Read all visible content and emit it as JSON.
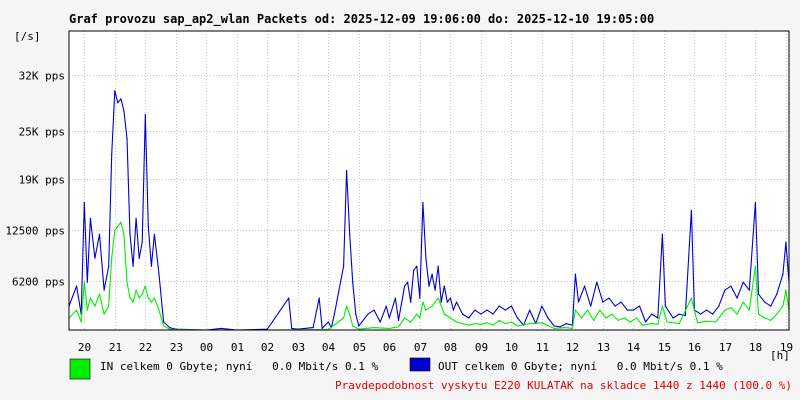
{
  "chart_data": {
    "type": "line",
    "title": "Graf provozu sap_ap2_wlan Packets od: 2025-12-09 19:06:00 do: 2025-12-10 19:05:00",
    "ylabel": "[/s]",
    "xlabel": "[h]",
    "ylim": [
      0,
      37500
    ],
    "xlim": [
      19.5,
      43.1
    ],
    "grid": true,
    "y_ticks": [
      {
        "value": 6200,
        "label": "6200 pps"
      },
      {
        "value": 12500,
        "label": "12500 pps"
      },
      {
        "value": 19000,
        "label": "19K pps"
      },
      {
        "value": 25000,
        "label": "25K pps"
      },
      {
        "value": 32000,
        "label": "32K pps"
      }
    ],
    "x_ticks": [
      {
        "value": 20,
        "label": "20"
      },
      {
        "value": 21,
        "label": "21"
      },
      {
        "value": 22,
        "label": "22"
      },
      {
        "value": 23,
        "label": "23"
      },
      {
        "value": 24,
        "label": "00"
      },
      {
        "value": 25,
        "label": "01"
      },
      {
        "value": 26,
        "label": "02"
      },
      {
        "value": 27,
        "label": "03"
      },
      {
        "value": 28,
        "label": "04"
      },
      {
        "value": 29,
        "label": "05"
      },
      {
        "value": 30,
        "label": "06"
      },
      {
        "value": 31,
        "label": "07"
      },
      {
        "value": 32,
        "label": "08"
      },
      {
        "value": 33,
        "label": "09"
      },
      {
        "value": 34,
        "label": "10"
      },
      {
        "value": 35,
        "label": "11"
      },
      {
        "value": 36,
        "label": "12"
      },
      {
        "value": 37,
        "label": "13"
      },
      {
        "value": 38,
        "label": "14"
      },
      {
        "value": 39,
        "label": "15"
      },
      {
        "value": 40,
        "label": "16"
      },
      {
        "value": 41,
        "label": "17"
      },
      {
        "value": 42,
        "label": "18"
      },
      {
        "value": 43,
        "label": "19"
      }
    ],
    "series": [
      {
        "name": "OUT",
        "color": "#0000cc",
        "points": [
          [
            19.5,
            3000
          ],
          [
            19.75,
            5500
          ],
          [
            19.9,
            2000
          ],
          [
            20.0,
            16000
          ],
          [
            20.1,
            6000
          ],
          [
            20.2,
            14000
          ],
          [
            20.35,
            9000
          ],
          [
            20.5,
            12000
          ],
          [
            20.65,
            5000
          ],
          [
            20.8,
            8000
          ],
          [
            20.9,
            22000
          ],
          [
            21.0,
            30000
          ],
          [
            21.1,
            28500
          ],
          [
            21.2,
            29000
          ],
          [
            21.3,
            27500
          ],
          [
            21.4,
            24000
          ],
          [
            21.5,
            12000
          ],
          [
            21.6,
            8000
          ],
          [
            21.7,
            14000
          ],
          [
            21.8,
            9000
          ],
          [
            21.9,
            11000
          ],
          [
            22.0,
            27000
          ],
          [
            22.1,
            13000
          ],
          [
            22.2,
            8000
          ],
          [
            22.3,
            12000
          ],
          [
            22.45,
            7000
          ],
          [
            22.6,
            1000
          ],
          [
            22.8,
            300
          ],
          [
            23.0,
            100
          ],
          [
            24.0,
            0
          ],
          [
            24.5,
            200
          ],
          [
            25.0,
            0
          ],
          [
            26.0,
            100
          ],
          [
            26.7,
            4000
          ],
          [
            26.8,
            200
          ],
          [
            27.0,
            100
          ],
          [
            27.5,
            300
          ],
          [
            27.7,
            4000
          ],
          [
            27.8,
            200
          ],
          [
            28.0,
            1000
          ],
          [
            28.1,
            300
          ],
          [
            28.2,
            2000
          ],
          [
            28.5,
            8000
          ],
          [
            28.6,
            20000
          ],
          [
            28.7,
            12000
          ],
          [
            28.8,
            6000
          ],
          [
            28.9,
            2000
          ],
          [
            29.0,
            500
          ],
          [
            29.3,
            2000
          ],
          [
            29.5,
            2500
          ],
          [
            29.7,
            1000
          ],
          [
            29.9,
            3000
          ],
          [
            30.0,
            1500
          ],
          [
            30.2,
            4000
          ],
          [
            30.3,
            1200
          ],
          [
            30.5,
            5500
          ],
          [
            30.6,
            6000
          ],
          [
            30.7,
            3500
          ],
          [
            30.8,
            7500
          ],
          [
            30.9,
            8000
          ],
          [
            31.0,
            4000
          ],
          [
            31.1,
            16000
          ],
          [
            31.2,
            9000
          ],
          [
            31.3,
            5500
          ],
          [
            31.4,
            7000
          ],
          [
            31.5,
            5000
          ],
          [
            31.6,
            8000
          ],
          [
            31.7,
            3500
          ],
          [
            31.8,
            5500
          ],
          [
            31.9,
            3500
          ],
          [
            32.0,
            4000
          ],
          [
            32.1,
            2500
          ],
          [
            32.2,
            3500
          ],
          [
            32.4,
            2000
          ],
          [
            32.6,
            1500
          ],
          [
            32.8,
            2500
          ],
          [
            33.0,
            2000
          ],
          [
            33.2,
            2500
          ],
          [
            33.4,
            2000
          ],
          [
            33.6,
            3000
          ],
          [
            33.8,
            2500
          ],
          [
            34.0,
            3000
          ],
          [
            34.2,
            1500
          ],
          [
            34.4,
            600
          ],
          [
            34.6,
            2500
          ],
          [
            34.8,
            800
          ],
          [
            35.0,
            3000
          ],
          [
            35.2,
            1500
          ],
          [
            35.4,
            500
          ],
          [
            35.6,
            400
          ],
          [
            35.8,
            800
          ],
          [
            36.0,
            600
          ],
          [
            36.1,
            7000
          ],
          [
            36.2,
            3500
          ],
          [
            36.4,
            5500
          ],
          [
            36.6,
            3000
          ],
          [
            36.8,
            6000
          ],
          [
            37.0,
            3500
          ],
          [
            37.2,
            4000
          ],
          [
            37.4,
            3000
          ],
          [
            37.6,
            3500
          ],
          [
            37.8,
            2500
          ],
          [
            38.0,
            2500
          ],
          [
            38.2,
            3000
          ],
          [
            38.4,
            1000
          ],
          [
            38.6,
            2000
          ],
          [
            38.8,
            1500
          ],
          [
            38.95,
            12000
          ],
          [
            39.05,
            3000
          ],
          [
            39.3,
            1500
          ],
          [
            39.5,
            2000
          ],
          [
            39.7,
            1800
          ],
          [
            39.9,
            15000
          ],
          [
            40.0,
            2500
          ],
          [
            40.2,
            2000
          ],
          [
            40.4,
            2500
          ],
          [
            40.6,
            2000
          ],
          [
            40.8,
            3000
          ],
          [
            41.0,
            5000
          ],
          [
            41.2,
            5500
          ],
          [
            41.4,
            4000
          ],
          [
            41.6,
            6000
          ],
          [
            41.8,
            5000
          ],
          [
            42.0,
            16000
          ],
          [
            42.1,
            4500
          ],
          [
            42.3,
            3500
          ],
          [
            42.5,
            3000
          ],
          [
            42.7,
            4500
          ],
          [
            42.9,
            7000
          ],
          [
            43.0,
            11000
          ],
          [
            43.1,
            6000
          ]
        ]
      },
      {
        "name": "IN",
        "color": "#00ee00",
        "points": [
          [
            19.5,
            1500
          ],
          [
            19.75,
            2500
          ],
          [
            19.9,
            1000
          ],
          [
            20.0,
            6000
          ],
          [
            20.1,
            2500
          ],
          [
            20.2,
            4000
          ],
          [
            20.35,
            3000
          ],
          [
            20.5,
            4500
          ],
          [
            20.65,
            2000
          ],
          [
            20.8,
            3000
          ],
          [
            20.9,
            9000
          ],
          [
            21.0,
            12500
          ],
          [
            21.1,
            13000
          ],
          [
            21.2,
            13500
          ],
          [
            21.3,
            12000
          ],
          [
            21.4,
            6000
          ],
          [
            21.5,
            4000
          ],
          [
            21.6,
            3500
          ],
          [
            21.7,
            5000
          ],
          [
            21.8,
            4000
          ],
          [
            21.9,
            4500
          ],
          [
            22.0,
            5500
          ],
          [
            22.1,
            4000
          ],
          [
            22.2,
            3500
          ],
          [
            22.3,
            4000
          ],
          [
            22.45,
            2500
          ],
          [
            22.6,
            500
          ],
          [
            22.8,
            100
          ],
          [
            23.0,
            50
          ],
          [
            24.0,
            0
          ],
          [
            26.0,
            0
          ],
          [
            28.0,
            50
          ],
          [
            28.5,
            1500
          ],
          [
            28.6,
            3000
          ],
          [
            28.7,
            2000
          ],
          [
            28.8,
            500
          ],
          [
            29.0,
            100
          ],
          [
            29.5,
            300
          ],
          [
            30.0,
            200
          ],
          [
            30.3,
            400
          ],
          [
            30.5,
            1500
          ],
          [
            30.7,
            1000
          ],
          [
            30.9,
            2000
          ],
          [
            31.0,
            1500
          ],
          [
            31.1,
            3500
          ],
          [
            31.2,
            2500
          ],
          [
            31.4,
            3000
          ],
          [
            31.6,
            4000
          ],
          [
            31.8,
            2000
          ],
          [
            32.0,
            1500
          ],
          [
            32.2,
            1000
          ],
          [
            32.4,
            800
          ],
          [
            32.6,
            600
          ],
          [
            32.8,
            800
          ],
          [
            33.0,
            700
          ],
          [
            33.2,
            900
          ],
          [
            33.4,
            600
          ],
          [
            33.6,
            1200
          ],
          [
            33.8,
            800
          ],
          [
            34.0,
            1000
          ],
          [
            34.2,
            500
          ],
          [
            34.6,
            800
          ],
          [
            35.0,
            900
          ],
          [
            35.4,
            200
          ],
          [
            35.8,
            300
          ],
          [
            36.0,
            200
          ],
          [
            36.1,
            2500
          ],
          [
            36.3,
            1500
          ],
          [
            36.5,
            2500
          ],
          [
            36.7,
            1200
          ],
          [
            36.9,
            2500
          ],
          [
            37.1,
            1500
          ],
          [
            37.3,
            2000
          ],
          [
            37.5,
            1200
          ],
          [
            37.7,
            1500
          ],
          [
            37.9,
            1000
          ],
          [
            38.1,
            1500
          ],
          [
            38.3,
            600
          ],
          [
            38.6,
            800
          ],
          [
            38.8,
            700
          ],
          [
            38.95,
            3000
          ],
          [
            39.1,
            1000
          ],
          [
            39.5,
            800
          ],
          [
            39.9,
            4000
          ],
          [
            40.1,
            900
          ],
          [
            40.4,
            1100
          ],
          [
            40.7,
            1000
          ],
          [
            41.0,
            2500
          ],
          [
            41.2,
            2800
          ],
          [
            41.4,
            2000
          ],
          [
            41.6,
            3500
          ],
          [
            41.8,
            2500
          ],
          [
            42.0,
            8000
          ],
          [
            42.1,
            2000
          ],
          [
            42.3,
            1500
          ],
          [
            42.5,
            1200
          ],
          [
            42.7,
            2000
          ],
          [
            42.9,
            3000
          ],
          [
            43.0,
            5000
          ],
          [
            43.1,
            2500
          ]
        ]
      }
    ]
  },
  "legend": {
    "in_text": "IN celkem 0 Gbyte; nyní   0.0 Mbit/s 0.1 %",
    "out_text": "OUT celkem 0 Gbyte; nyní   0.0 Mbit/s 0.1 %",
    "in_color": "#00ee00",
    "out_color": "#0000cc"
  },
  "warning": {
    "text": "Pravdepodobnost vyskytu E220 KULATAK na skladce 1440 z 1440 (100.0 %)",
    "color": "#e00000"
  }
}
